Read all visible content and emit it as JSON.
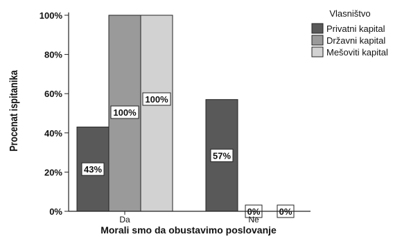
{
  "chart_data": {
    "type": "bar",
    "categories": [
      "Da",
      "Ne"
    ],
    "series": [
      {
        "name": "Privatni kapital",
        "values": [
          43,
          57
        ],
        "color": "#595959"
      },
      {
        "name": "Državni kapital",
        "values": [
          100,
          0
        ],
        "color": "#9a9a9a"
      },
      {
        "name": "Mešoviti kapital",
        "values": [
          100,
          0
        ],
        "color": "#d2d2d2"
      }
    ],
    "data_labels": [
      [
        "43%",
        "57%"
      ],
      [
        "100%",
        "0%"
      ],
      [
        "100%",
        "0%"
      ]
    ],
    "yticks": [
      "0%",
      "20%",
      "40%",
      "60%",
      "80%",
      "100%"
    ],
    "ylim": [
      0,
      100
    ],
    "xlabel": "Morali smo da obustavimo poslovanje",
    "ylabel": "Procenat ispitanika",
    "legend_title": "Vlasništvo",
    "legend_position": "top-right",
    "grid": false
  }
}
